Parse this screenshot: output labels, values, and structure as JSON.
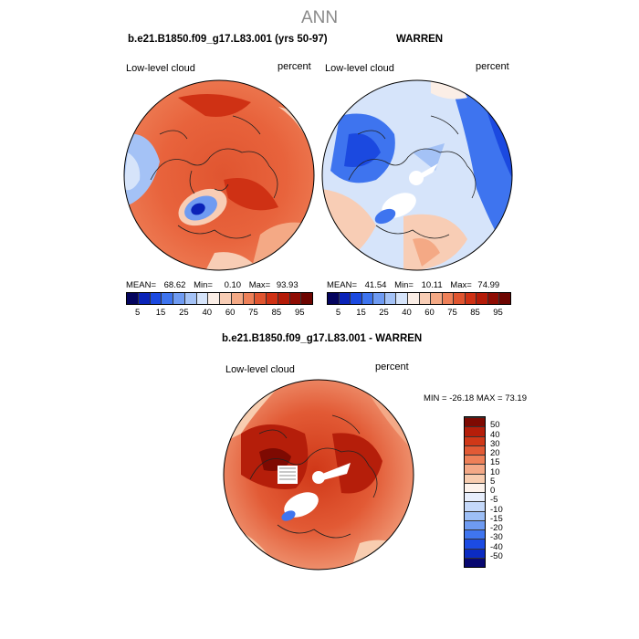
{
  "suptitle": "ANN",
  "colors": {
    "levels": [
      "#04045e",
      "#0a23b8",
      "#1b49e0",
      "#3e74ef",
      "#6f9bf2",
      "#a4c2f6",
      "#d6e4fa",
      "#fbeee6",
      "#f8cdb5",
      "#f4a985",
      "#ee8058",
      "#e05530",
      "#cf3114",
      "#b41b08",
      "#8f0c03",
      "#6d0501"
    ],
    "diff_levels": [
      "#080870",
      "#0b2bc2",
      "#1c4be3",
      "#3f75ef",
      "#6e9bf2",
      "#9dbff6",
      "#c5d9fa",
      "#e7eefc",
      "#fdf3ec",
      "#f8cdb0",
      "#f4a987",
      "#ee8058",
      "#e25a35",
      "#d03818",
      "#b51e0a",
      "#7e0a02"
    ]
  },
  "chart_data": [
    {
      "type": "heatmap",
      "title": "b.e21.B1850.f09_g17.L83.001 (yrs 50-97)",
      "variable": "Low-level cloud",
      "units": "percent",
      "stats": {
        "mean": "68.62",
        "min": "0.10",
        "max": "93.93"
      },
      "stats_labels": {
        "mean": "MEAN=",
        "min": "Min=",
        "max": "Max="
      },
      "colorbar_ticks": [
        "5",
        "15",
        "25",
        "40",
        "60",
        "75",
        "85",
        "95"
      ],
      "levels": [
        5,
        10,
        15,
        20,
        25,
        30,
        40,
        50,
        60,
        65,
        70,
        75,
        80,
        85,
        90,
        95
      ]
    },
    {
      "type": "heatmap",
      "title": "WARREN",
      "variable": "Low-level cloud",
      "units": "percent",
      "stats": {
        "mean": "41.54",
        "min": "10.11",
        "max": "74.99"
      },
      "stats_labels": {
        "mean": "MEAN=",
        "min": "Min=",
        "max": "Max="
      },
      "colorbar_ticks": [
        "5",
        "15",
        "25",
        "40",
        "60",
        "75",
        "85",
        "95"
      ],
      "levels": [
        5,
        10,
        15,
        20,
        25,
        30,
        40,
        50,
        60,
        65,
        70,
        75,
        80,
        85,
        90,
        95
      ]
    },
    {
      "type": "heatmap",
      "title": "b.e21.B1850.f09_g17.L83.001 - WARREN",
      "variable": "Low-level cloud",
      "units": "percent",
      "minmax_text": "MIN = -26.18  MAX =  73.19",
      "colorbar_ticks": [
        "50",
        "40",
        "30",
        "20",
        "15",
        "10",
        "5",
        "0",
        "-5",
        "-10",
        "-15",
        "-20",
        "-30",
        "-40",
        "-50"
      ],
      "levels": [
        -50,
        -40,
        -30,
        -20,
        -15,
        -10,
        -5,
        0,
        5,
        10,
        15,
        20,
        30,
        40,
        50
      ]
    }
  ]
}
